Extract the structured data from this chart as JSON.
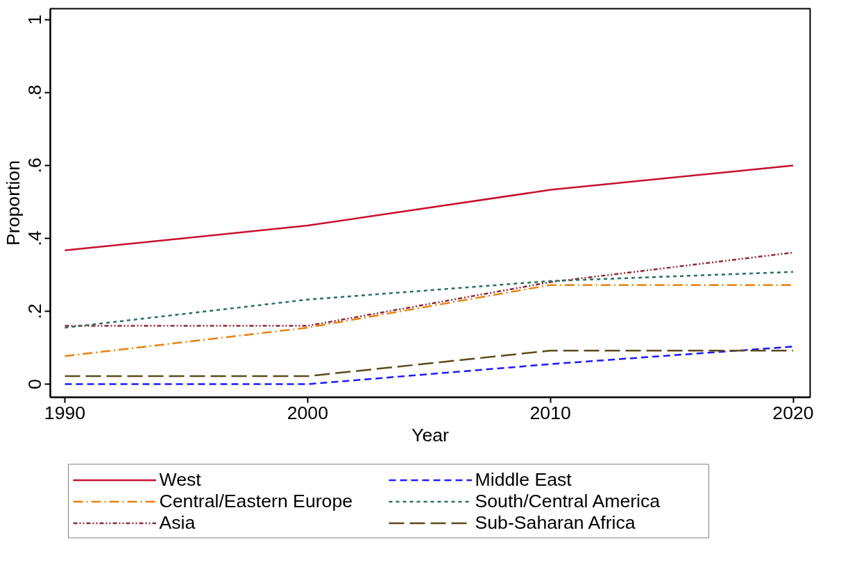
{
  "chart_data": {
    "type": "line",
    "xlabel": "Year",
    "ylabel": "Proportion",
    "x": [
      1990,
      2000,
      2010,
      2020
    ],
    "xlim": [
      1989.4,
      2020.7
    ],
    "xticks": [
      1990,
      2000,
      2010,
      2020
    ],
    "ylim": [
      -0.036,
      1.03
    ],
    "yticks": [
      {
        "value": 0,
        "label": "0"
      },
      {
        "value": 0.2,
        "label": ".2"
      },
      {
        "value": 0.4,
        "label": ".4"
      },
      {
        "value": 0.6,
        "label": ".6"
      },
      {
        "value": 0.8,
        "label": ".8"
      },
      {
        "value": 1,
        "label": "1"
      }
    ],
    "grid": false,
    "legend": "bottom",
    "marker": "none",
    "series": [
      {
        "name": "West",
        "color": "#c8102e",
        "line_style": "solid",
        "values": [
          0.367,
          0.435,
          0.533,
          0.6
        ]
      },
      {
        "name": "Central/Eastern Europe",
        "color": "#e8800f",
        "line_style": "dashdot",
        "values": [
          0.077,
          0.155,
          0.272,
          0.272
        ]
      },
      {
        "name": "Asia",
        "color": "#8b2b33",
        "line_style": "dashdotdot",
        "values": [
          0.16,
          0.16,
          0.28,
          0.361
        ]
      },
      {
        "name": "Middle East",
        "color": "#1a1aff",
        "line_style": "dashed",
        "values": [
          0,
          0,
          0.055,
          0.103
        ]
      },
      {
        "name": "South/Central America",
        "color": "#2a6e62",
        "line_style": "dotted",
        "values": [
          0.155,
          0.232,
          0.283,
          0.308
        ]
      },
      {
        "name": "Sub-Saharan Africa",
        "color": "#5c4a1a",
        "line_style": "longdash",
        "values": [
          0.022,
          0.022,
          0.092,
          0.092
        ]
      }
    ]
  }
}
